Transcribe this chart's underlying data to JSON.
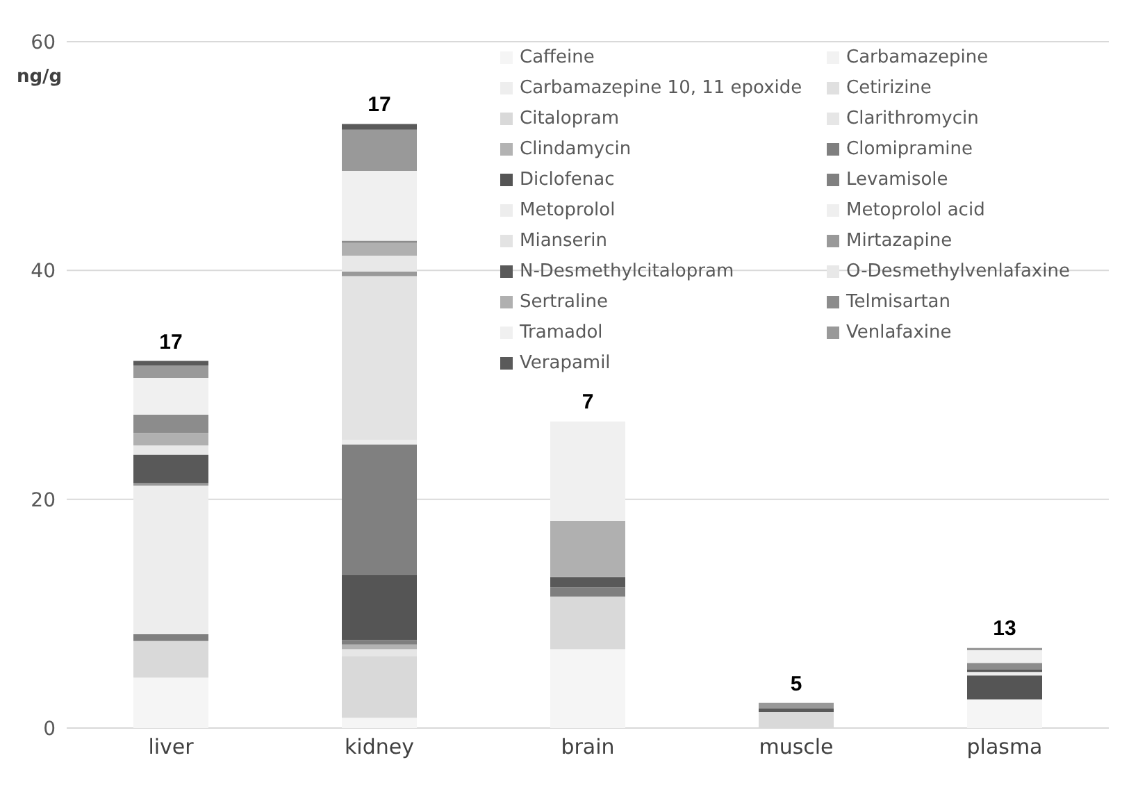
{
  "chart_data": {
    "type": "bar",
    "stacked": true,
    "ylabel": "ng/g",
    "categories": [
      "liver",
      "kidney",
      "brain",
      "muscle",
      "plasma"
    ],
    "ylim": [
      0,
      60
    ],
    "yticks": [
      0,
      20,
      40,
      60
    ],
    "grid": "y",
    "legend": "top right",
    "annotations": [
      "17",
      "17",
      "7",
      "5",
      "13"
    ],
    "series": [
      {
        "name": "Caffeine",
        "color": "#f5f5f5",
        "values": [
          4.4,
          0.9,
          6.9,
          null,
          2.5
        ]
      },
      {
        "name": "Carbamazepine",
        "color": "#f2f2f2",
        "values": [
          null,
          null,
          null,
          null,
          null
        ]
      },
      {
        "name": "Carbamazepine 10, 11 epoxide",
        "color": "#eeeeee",
        "values": [
          null,
          null,
          null,
          null,
          null
        ]
      },
      {
        "name": "Cetirizine",
        "color": "#e0e0e0",
        "values": [
          null,
          null,
          null,
          null,
          null
        ]
      },
      {
        "name": "Citalopram",
        "color": "#d9d9d9",
        "values": [
          3.2,
          5.4,
          4.6,
          1.4,
          null
        ]
      },
      {
        "name": "Clarithromycin",
        "color": "#e6e6e6",
        "values": [
          null,
          0.6,
          null,
          null,
          null
        ]
      },
      {
        "name": "Clindamycin",
        "color": "#b3b3b3",
        "values": [
          null,
          0.4,
          null,
          null,
          null
        ]
      },
      {
        "name": "Clomipramine",
        "color": "#7f7f7f",
        "values": [
          0.6,
          0.4,
          0.8,
          null,
          null
        ]
      },
      {
        "name": "Diclofenac",
        "color": "#555555",
        "values": [
          null,
          5.7,
          null,
          null,
          2.1
        ]
      },
      {
        "name": "Levamisole",
        "color": "#808080",
        "values": [
          null,
          11.4,
          null,
          null,
          null
        ]
      },
      {
        "name": "Metoprolol",
        "color": "#ededed",
        "values": [
          13.0,
          0.4,
          null,
          null,
          0.3
        ]
      },
      {
        "name": "Metoprolol acid",
        "color": "#efefef",
        "values": [
          null,
          null,
          null,
          null,
          null
        ]
      },
      {
        "name": "Mianserin",
        "color": "#e3e3e3",
        "values": [
          null,
          14.3,
          null,
          null,
          null
        ]
      },
      {
        "name": "Mirtazapine",
        "color": "#999999",
        "values": [
          0.2,
          0.4,
          null,
          null,
          null
        ]
      },
      {
        "name": "N-Desmethylcitalopram",
        "color": "#595959",
        "values": [
          2.5,
          null,
          0.9,
          0.3,
          0.2
        ]
      },
      {
        "name": "O-Desmethylvenlafaxine",
        "color": "#e8e8e8",
        "values": [
          0.8,
          1.4,
          null,
          null,
          null
        ]
      },
      {
        "name": "Sertraline",
        "color": "#b0b0b0",
        "values": [
          1.1,
          1.1,
          4.9,
          null,
          null
        ]
      },
      {
        "name": "Telmisartan",
        "color": "#8c8c8c",
        "values": [
          1.6,
          0.2,
          null,
          null,
          0.6
        ]
      },
      {
        "name": "Tramadol",
        "color": "#f0f0f0",
        "values": [
          3.2,
          6.1,
          8.7,
          null,
          1.1
        ]
      },
      {
        "name": "Venlafaxine",
        "color": "#999999",
        "values": [
          1.1,
          3.6,
          null,
          0.5,
          0.2
        ]
      },
      {
        "name": "Verapamil",
        "color": "#5a5a5a",
        "values": [
          0.4,
          0.5,
          null,
          null,
          null
        ]
      }
    ]
  }
}
